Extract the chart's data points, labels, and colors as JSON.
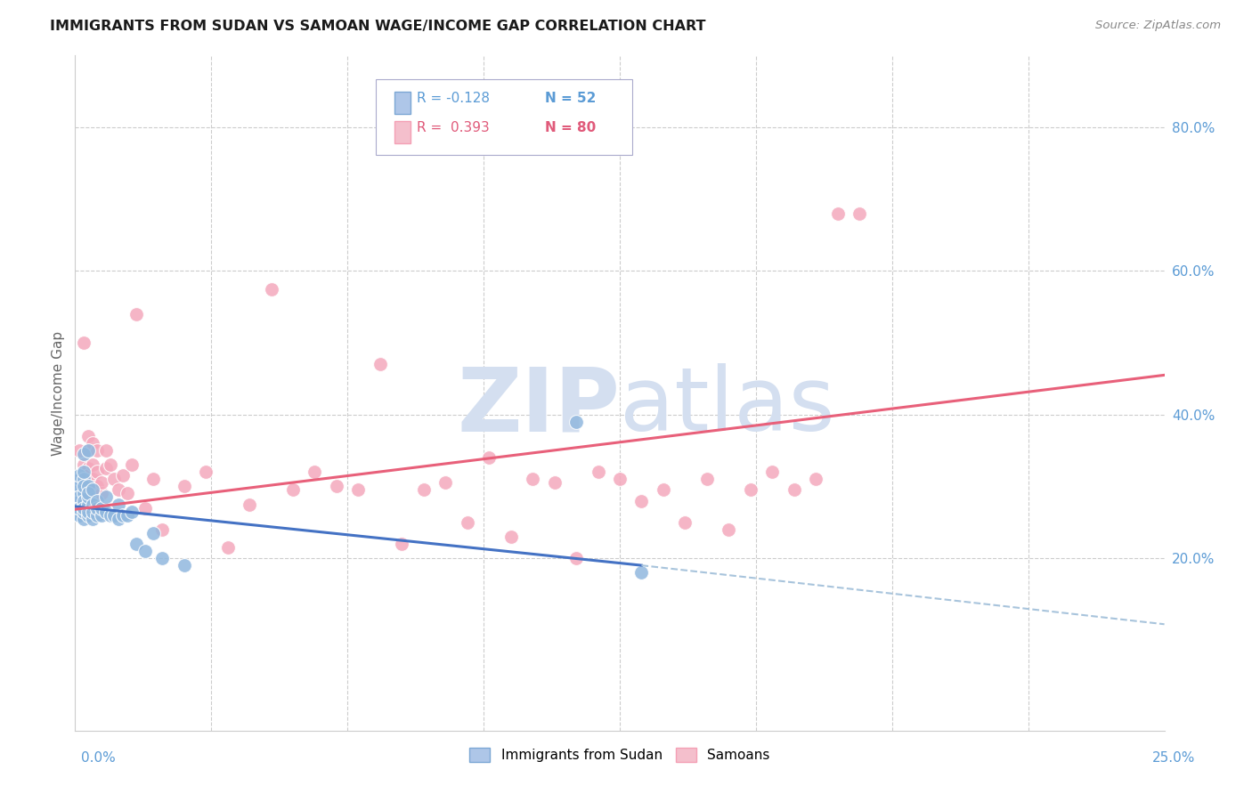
{
  "title": "IMMIGRANTS FROM SUDAN VS SAMOAN WAGE/INCOME GAP CORRELATION CHART",
  "source": "Source: ZipAtlas.com",
  "ylabel": "Wage/Income Gap",
  "right_yticks": [
    "80.0%",
    "60.0%",
    "40.0%",
    "20.0%"
  ],
  "right_ytick_vals": [
    0.8,
    0.6,
    0.4,
    0.2
  ],
  "xmin": 0.0,
  "xmax": 0.25,
  "ymin": -0.04,
  "ymax": 0.9,
  "blue_scatter_color": "#91B8DE",
  "pink_scatter_color": "#F4A8BC",
  "blue_line_color": "#4472C4",
  "pink_line_color": "#E8607A",
  "dash_line_color": "#A8C4DC",
  "watermark_color": "#D4DFF0",
  "legend_box_color": "#E8E8F0",
  "sudan_x": [
    0.001,
    0.001,
    0.001,
    0.001,
    0.001,
    0.001,
    0.001,
    0.001,
    0.001,
    0.001,
    0.002,
    0.002,
    0.002,
    0.002,
    0.002,
    0.002,
    0.002,
    0.002,
    0.002,
    0.002,
    0.003,
    0.003,
    0.003,
    0.003,
    0.003,
    0.003,
    0.003,
    0.004,
    0.004,
    0.004,
    0.004,
    0.005,
    0.005,
    0.005,
    0.006,
    0.006,
    0.007,
    0.007,
    0.008,
    0.009,
    0.01,
    0.01,
    0.011,
    0.012,
    0.013,
    0.014,
    0.016,
    0.018,
    0.02,
    0.025,
    0.115,
    0.13
  ],
  "sudan_y": [
    0.26,
    0.28,
    0.295,
    0.31,
    0.27,
    0.3,
    0.285,
    0.26,
    0.315,
    0.27,
    0.255,
    0.275,
    0.29,
    0.31,
    0.265,
    0.3,
    0.28,
    0.32,
    0.27,
    0.345,
    0.26,
    0.275,
    0.285,
    0.3,
    0.265,
    0.35,
    0.29,
    0.255,
    0.275,
    0.295,
    0.265,
    0.26,
    0.27,
    0.28,
    0.26,
    0.27,
    0.265,
    0.285,
    0.26,
    0.26,
    0.255,
    0.275,
    0.26,
    0.26,
    0.265,
    0.22,
    0.21,
    0.235,
    0.2,
    0.19,
    0.39,
    0.18
  ],
  "samoan_x": [
    0.001,
    0.001,
    0.001,
    0.001,
    0.001,
    0.001,
    0.001,
    0.001,
    0.001,
    0.001,
    0.002,
    0.002,
    0.002,
    0.002,
    0.002,
    0.002,
    0.002,
    0.002,
    0.002,
    0.002,
    0.003,
    0.003,
    0.003,
    0.003,
    0.003,
    0.003,
    0.003,
    0.004,
    0.004,
    0.004,
    0.004,
    0.005,
    0.005,
    0.005,
    0.006,
    0.006,
    0.007,
    0.007,
    0.008,
    0.009,
    0.01,
    0.011,
    0.012,
    0.013,
    0.014,
    0.016,
    0.018,
    0.02,
    0.025,
    0.03,
    0.035,
    0.04,
    0.045,
    0.05,
    0.055,
    0.06,
    0.065,
    0.07,
    0.075,
    0.08,
    0.085,
    0.09,
    0.095,
    0.1,
    0.105,
    0.11,
    0.115,
    0.12,
    0.125,
    0.13,
    0.135,
    0.14,
    0.145,
    0.15,
    0.155,
    0.16,
    0.165,
    0.17,
    0.175,
    0.18
  ],
  "samoan_y": [
    0.265,
    0.28,
    0.3,
    0.265,
    0.31,
    0.35,
    0.275,
    0.29,
    0.305,
    0.28,
    0.295,
    0.27,
    0.31,
    0.33,
    0.285,
    0.5,
    0.27,
    0.29,
    0.295,
    0.28,
    0.325,
    0.35,
    0.3,
    0.37,
    0.29,
    0.315,
    0.28,
    0.36,
    0.31,
    0.295,
    0.33,
    0.3,
    0.32,
    0.35,
    0.29,
    0.305,
    0.325,
    0.35,
    0.33,
    0.31,
    0.295,
    0.315,
    0.29,
    0.33,
    0.54,
    0.27,
    0.31,
    0.24,
    0.3,
    0.32,
    0.215,
    0.275,
    0.575,
    0.295,
    0.32,
    0.3,
    0.295,
    0.47,
    0.22,
    0.295,
    0.305,
    0.25,
    0.34,
    0.23,
    0.31,
    0.305,
    0.2,
    0.32,
    0.31,
    0.28,
    0.295,
    0.25,
    0.31,
    0.24,
    0.295,
    0.32,
    0.295,
    0.31,
    0.68,
    0.68
  ],
  "blue_trendline_x0": 0.0,
  "blue_trendline_y0": 0.272,
  "blue_trendline_x1": 0.13,
  "blue_trendline_y1": 0.19,
  "blue_trendline_x2": 0.25,
  "blue_trendline_y2": 0.108,
  "pink_trendline_x0": 0.0,
  "pink_trendline_y0": 0.268,
  "pink_trendline_x1": 0.25,
  "pink_trendline_y1": 0.455
}
